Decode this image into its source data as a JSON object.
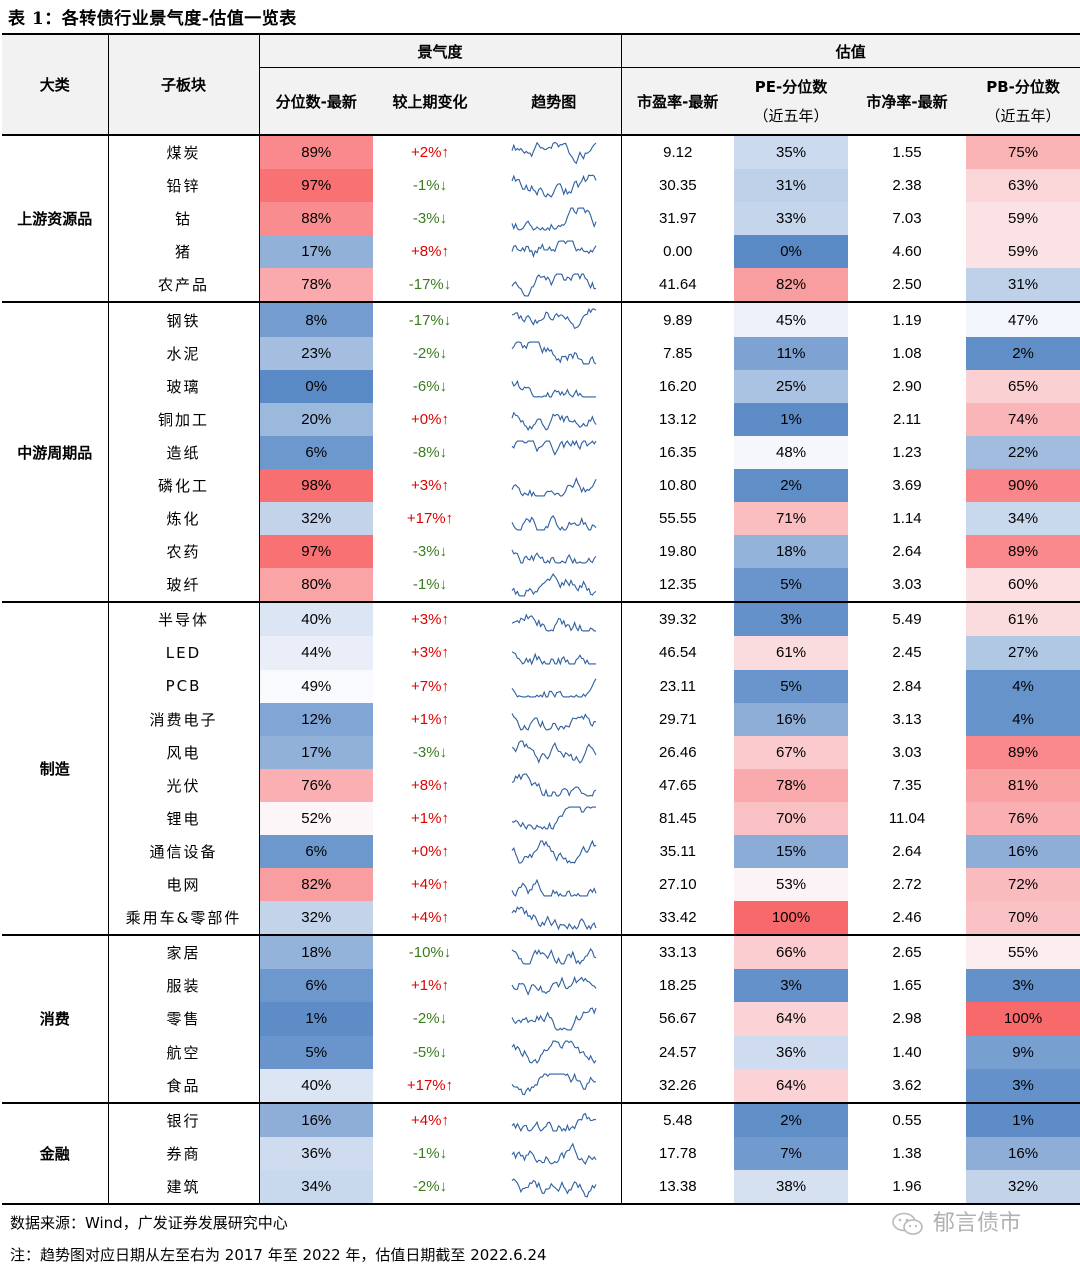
{
  "title": "表 1：各转债行业景气度-估值一览表",
  "headers": {
    "cat": "大类",
    "sub": "子板块",
    "prosperity": "景气度",
    "valuation": "估值",
    "pct_latest": "分位数-最新",
    "change": "较上期变化",
    "trend": "趋势图",
    "pe": "市盈率-最新",
    "pe_pct_line1": "PE-分位数",
    "pe_pct_line2": "（近五年）",
    "pb": "市净率-最新",
    "pb_pct_line1": "PB-分位数",
    "pb_pct_line2": "（近五年）"
  },
  "groups": [
    {
      "name": "上游资源品",
      "rows": [
        {
          "sub": "煤炭",
          "pct": "89%",
          "chg": "+2%↑",
          "pe": "9.12",
          "pe_pct": "35%",
          "pb": "1.55",
          "pb_pct": "75%"
        },
        {
          "sub": "铅锌",
          "pct": "97%",
          "chg": "-1%↓",
          "pe": "30.35",
          "pe_pct": "31%",
          "pb": "2.38",
          "pb_pct": "63%"
        },
        {
          "sub": "钴",
          "pct": "88%",
          "chg": "-3%↓",
          "pe": "31.97",
          "pe_pct": "33%",
          "pb": "7.03",
          "pb_pct": "59%"
        },
        {
          "sub": "猪",
          "pct": "17%",
          "chg": "+8%↑",
          "pe": "0.00",
          "pe_pct": "0%",
          "pb": "4.60",
          "pb_pct": "59%"
        },
        {
          "sub": "农产品",
          "pct": "78%",
          "chg": "-17%↓",
          "pe": "41.64",
          "pe_pct": "82%",
          "pb": "2.50",
          "pb_pct": "31%"
        }
      ]
    },
    {
      "name": "中游周期品",
      "rows": [
        {
          "sub": "钢铁",
          "pct": "8%",
          "chg": "-17%↓",
          "pe": "9.89",
          "pe_pct": "45%",
          "pb": "1.19",
          "pb_pct": "47%"
        },
        {
          "sub": "水泥",
          "pct": "23%",
          "chg": "-2%↓",
          "pe": "7.85",
          "pe_pct": "11%",
          "pb": "1.08",
          "pb_pct": "2%"
        },
        {
          "sub": "玻璃",
          "pct": "0%",
          "chg": "-6%↓",
          "pe": "16.20",
          "pe_pct": "25%",
          "pb": "2.90",
          "pb_pct": "65%"
        },
        {
          "sub": "铜加工",
          "pct": "20%",
          "chg": "+0%↑",
          "pe": "13.12",
          "pe_pct": "1%",
          "pb": "2.11",
          "pb_pct": "74%"
        },
        {
          "sub": "造纸",
          "pct": "6%",
          "chg": "-8%↓",
          "pe": "16.35",
          "pe_pct": "48%",
          "pb": "1.23",
          "pb_pct": "22%"
        },
        {
          "sub": "磷化工",
          "pct": "98%",
          "chg": "+3%↑",
          "pe": "10.80",
          "pe_pct": "2%",
          "pb": "3.69",
          "pb_pct": "90%"
        },
        {
          "sub": "炼化",
          "pct": "32%",
          "chg": "+17%↑",
          "pe": "55.55",
          "pe_pct": "71%",
          "pb": "1.14",
          "pb_pct": "34%"
        },
        {
          "sub": "农药",
          "pct": "97%",
          "chg": "-3%↓",
          "pe": "19.80",
          "pe_pct": "18%",
          "pb": "2.64",
          "pb_pct": "89%"
        },
        {
          "sub": "玻纤",
          "pct": "80%",
          "chg": "-1%↓",
          "pe": "12.35",
          "pe_pct": "5%",
          "pb": "3.03",
          "pb_pct": "60%"
        }
      ]
    },
    {
      "name": "制造",
      "rows": [
        {
          "sub": "半导体",
          "pct": "40%",
          "chg": "+3%↑",
          "pe": "39.32",
          "pe_pct": "3%",
          "pb": "5.49",
          "pb_pct": "61%"
        },
        {
          "sub": "LED",
          "pct": "44%",
          "chg": "+3%↑",
          "pe": "46.54",
          "pe_pct": "61%",
          "pb": "2.45",
          "pb_pct": "27%"
        },
        {
          "sub": "PCB",
          "pct": "49%",
          "chg": "+7%↑",
          "pe": "23.11",
          "pe_pct": "5%",
          "pb": "2.84",
          "pb_pct": "4%"
        },
        {
          "sub": "消费电子",
          "pct": "12%",
          "chg": "+1%↑",
          "pe": "29.71",
          "pe_pct": "16%",
          "pb": "3.13",
          "pb_pct": "4%"
        },
        {
          "sub": "风电",
          "pct": "17%",
          "chg": "-3%↓",
          "pe": "26.46",
          "pe_pct": "67%",
          "pb": "3.03",
          "pb_pct": "89%"
        },
        {
          "sub": "光伏",
          "pct": "76%",
          "chg": "+8%↑",
          "pe": "47.65",
          "pe_pct": "78%",
          "pb": "7.35",
          "pb_pct": "81%"
        },
        {
          "sub": "锂电",
          "pct": "52%",
          "chg": "+1%↑",
          "pe": "81.45",
          "pe_pct": "70%",
          "pb": "11.04",
          "pb_pct": "76%"
        },
        {
          "sub": "通信设备",
          "pct": "6%",
          "chg": "+0%↑",
          "pe": "35.11",
          "pe_pct": "15%",
          "pb": "2.64",
          "pb_pct": "16%"
        },
        {
          "sub": "电网",
          "pct": "82%",
          "chg": "+4%↑",
          "pe": "27.10",
          "pe_pct": "53%",
          "pb": "2.72",
          "pb_pct": "72%"
        },
        {
          "sub": "乘用车&零部件",
          "pct": "32%",
          "chg": "+4%↑",
          "pe": "33.42",
          "pe_pct": "100%",
          "pb": "2.46",
          "pb_pct": "70%"
        }
      ]
    },
    {
      "name": "消费",
      "rows": [
        {
          "sub": "家居",
          "pct": "18%",
          "chg": "-10%↓",
          "pe": "33.13",
          "pe_pct": "66%",
          "pb": "2.65",
          "pb_pct": "55%"
        },
        {
          "sub": "服装",
          "pct": "6%",
          "chg": "+1%↑",
          "pe": "18.25",
          "pe_pct": "3%",
          "pb": "1.65",
          "pb_pct": "3%"
        },
        {
          "sub": "零售",
          "pct": "1%",
          "chg": "-2%↓",
          "pe": "56.67",
          "pe_pct": "64%",
          "pb": "2.98",
          "pb_pct": "100%"
        },
        {
          "sub": "航空",
          "pct": "5%",
          "chg": "-5%↓",
          "pe": "24.57",
          "pe_pct": "36%",
          "pb": "1.40",
          "pb_pct": "9%"
        },
        {
          "sub": "食品",
          "pct": "40%",
          "chg": "+17%↑",
          "pe": "32.26",
          "pe_pct": "64%",
          "pb": "3.62",
          "pb_pct": "3%"
        }
      ]
    },
    {
      "name": "金融",
      "rows": [
        {
          "sub": "银行",
          "pct": "16%",
          "chg": "+4%↑",
          "pe": "5.48",
          "pe_pct": "2%",
          "pb": "0.55",
          "pb_pct": "1%"
        },
        {
          "sub": "券商",
          "pct": "36%",
          "chg": "-1%↓",
          "pe": "17.78",
          "pe_pct": "7%",
          "pb": "1.38",
          "pb_pct": "16%"
        },
        {
          "sub": "建筑",
          "pct": "34%",
          "chg": "-2%↓",
          "pe": "13.38",
          "pe_pct": "38%",
          "pb": "1.96",
          "pb_pct": "32%"
        }
      ]
    }
  ],
  "source": "数据来源：Wind，广发证券发展研究中心",
  "note": "注：趋势图对应日期从左至右为 2017 年至 2022 年，估值日期截至 2022.6.24",
  "watermark": "郁言债市",
  "colors": {
    "red": "#f8696b",
    "white": "#fcfcff",
    "blue": "#5a8ac6",
    "up": "#e00000",
    "down": "#3a7d1e",
    "spark": "#2e5fa0"
  }
}
